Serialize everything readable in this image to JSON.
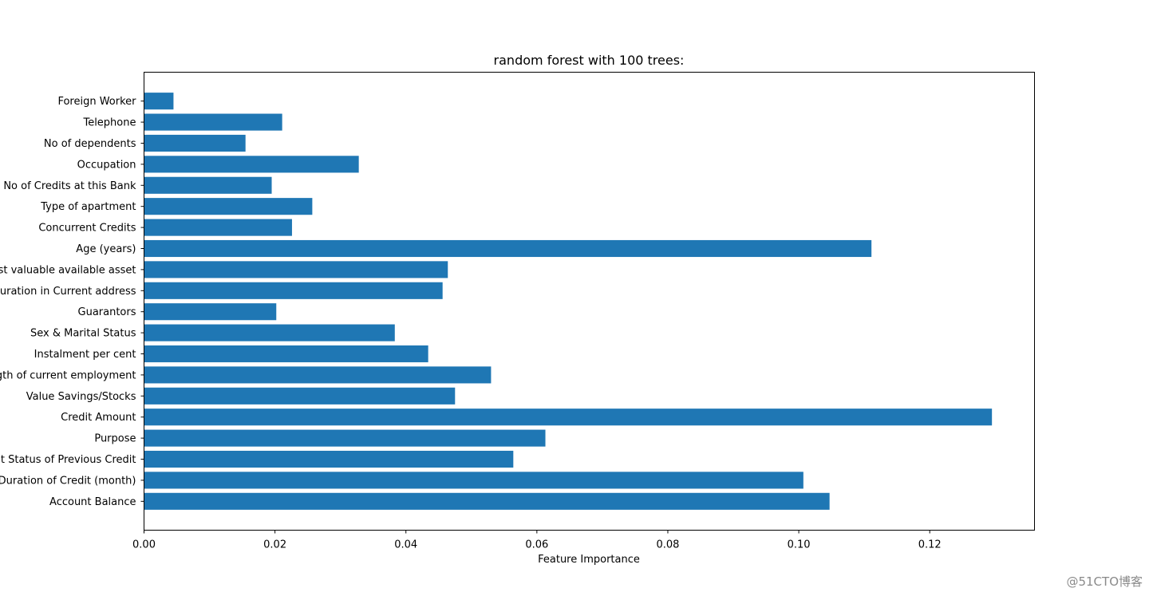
{
  "chart_data": {
    "type": "bar",
    "orientation": "horizontal",
    "title": "random forest with 100 trees:",
    "xlabel": "Feature Importance",
    "ylabel": "",
    "xlim": [
      0,
      0.136
    ],
    "xticks": [
      0.0,
      0.02,
      0.04,
      0.06,
      0.08,
      0.1,
      0.12
    ],
    "xtick_labels": [
      "0.00",
      "0.02",
      "0.04",
      "0.06",
      "0.08",
      "0.10",
      "0.12"
    ],
    "grid": false,
    "bar_color": "#1f77b4",
    "categories": [
      "Account Balance",
      "Duration of Credit (month)",
      "Payment Status of Previous Credit",
      "Purpose",
      "Credit Amount",
      "Value Savings/Stocks",
      "Length of current employment",
      "Instalment per cent",
      "Sex & Marital Status",
      "Guarantors",
      "Duration in Current address",
      "Most valuable available asset",
      "Age (years)",
      "Concurrent Credits",
      "Type of apartment",
      "No of Credits at this Bank",
      "Occupation",
      "No of dependents",
      "Telephone",
      "Foreign Worker"
    ],
    "values": [
      0.1047,
      0.1007,
      0.0564,
      0.0613,
      0.1295,
      0.0475,
      0.053,
      0.0434,
      0.0383,
      0.0202,
      0.0456,
      0.0464,
      0.1111,
      0.0226,
      0.0257,
      0.0195,
      0.0328,
      0.0155,
      0.0211,
      0.0045
    ]
  },
  "watermark": "@51CTO博客"
}
